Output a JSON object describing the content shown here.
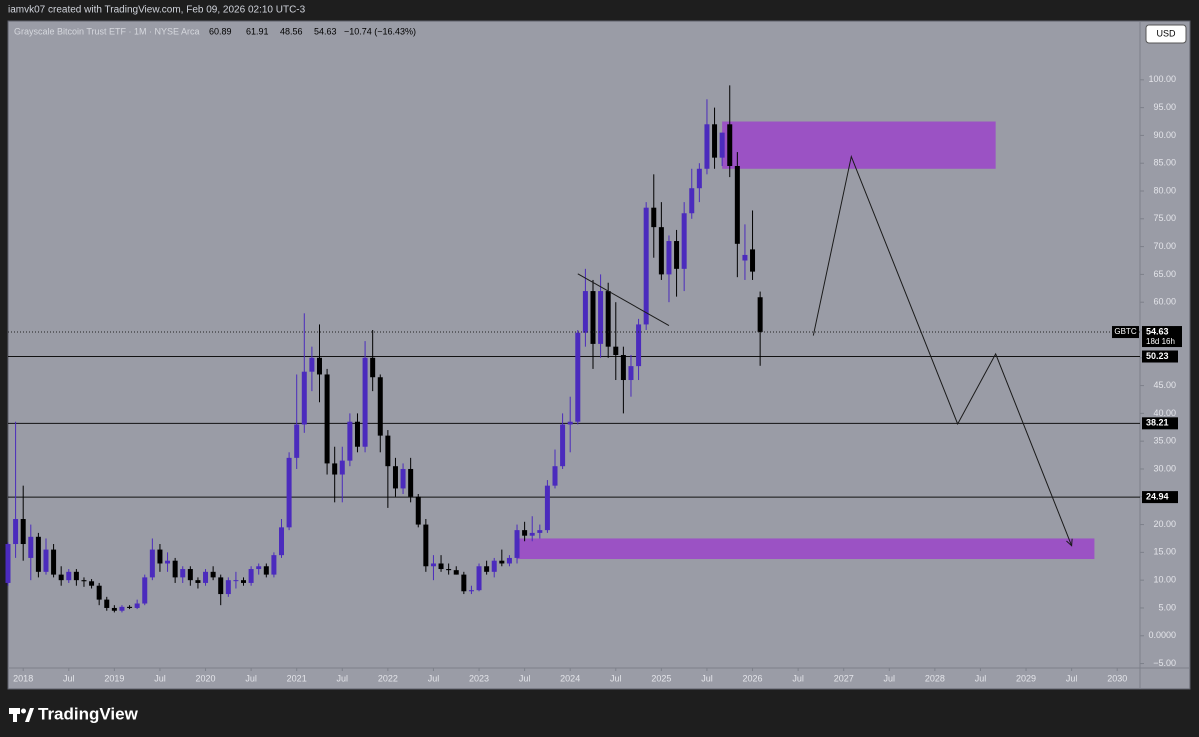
{
  "header": {
    "author_line": "iamvk07 created with TradingView.com, Feb 09, 2026 02:10 UTC-3",
    "brand": "TradingView"
  },
  "chart_data": {
    "type": "candlestick",
    "symbol_title": "Grayscale Bitcoin Trust ETF · 1M · NYSE Arca",
    "change": "−10.74 (−16.43%)",
    "currency": "USD",
    "symbol": "GBTC",
    "countdown": "18d 16h",
    "up_color": "#4b2bbd",
    "down_color": "#000000",
    "x": [
      "2017-11",
      "2017-12",
      "2018-01",
      "2018-02",
      "2018-03",
      "2018-04",
      "2018-05",
      "2018-06",
      "2018-07",
      "2018-08",
      "2018-09",
      "2018-10",
      "2018-11",
      "2018-12",
      "2019-01",
      "2019-02",
      "2019-03",
      "2019-04",
      "2019-05",
      "2019-06",
      "2019-07",
      "2019-08",
      "2019-09",
      "2019-10",
      "2019-11",
      "2019-12",
      "2020-01",
      "2020-02",
      "2020-03",
      "2020-04",
      "2020-05",
      "2020-06",
      "2020-07",
      "2020-08",
      "2020-09",
      "2020-10",
      "2020-11",
      "2020-12",
      "2021-01",
      "2021-02",
      "2021-03",
      "2021-04",
      "2021-05",
      "2021-06",
      "2021-07",
      "2021-08",
      "2021-09",
      "2021-10",
      "2021-11",
      "2021-12",
      "2022-01",
      "2022-02",
      "2022-03",
      "2022-04",
      "2022-05",
      "2022-06",
      "2022-07",
      "2022-08",
      "2022-09",
      "2022-10",
      "2022-11",
      "2022-12",
      "2023-01",
      "2023-02",
      "2023-03",
      "2023-04",
      "2023-05",
      "2023-06",
      "2023-07",
      "2023-08",
      "2023-09",
      "2023-10",
      "2023-11",
      "2023-12",
      "2024-01",
      "2024-02",
      "2024-03",
      "2024-04",
      "2024-05",
      "2024-06",
      "2024-07",
      "2024-08",
      "2024-09",
      "2024-10",
      "2024-11",
      "2024-12",
      "2025-01",
      "2025-02",
      "2025-03",
      "2025-04",
      "2025-05",
      "2025-06",
      "2025-07",
      "2025-08",
      "2025-09",
      "2025-10",
      "2025-11",
      "2025-12",
      "2026-01",
      "2026-02"
    ],
    "open": [
      9.5,
      16.5,
      21.0,
      14.0,
      17.8,
      11.5,
      15.5,
      11.0,
      10.0,
      11.5,
      10.0,
      9.8,
      9.0,
      6.5,
      5.0,
      4.5,
      5.2,
      5.0,
      5.8,
      10.5,
      15.5,
      13.0,
      13.5,
      10.5,
      12.0,
      10.0,
      9.5,
      11.5,
      10.5,
      7.5,
      10.0,
      10.0,
      9.5,
      12.0,
      12.5,
      11.0,
      14.5,
      19.5,
      32.0,
      38.0,
      47.5,
      50.0,
      47.0,
      31.0,
      29.0,
      31.5,
      38.5,
      34.0,
      50.0,
      46.5,
      36.0,
      30.5,
      26.5,
      30.0,
      25.0,
      20.0,
      12.5,
      13.0,
      12.0,
      11.8,
      11.0,
      8.0,
      8.2,
      12.5,
      11.5,
      13.5,
      13.0,
      14.0,
      19.0,
      18.0,
      18.5,
      19.0,
      27.0,
      30.5,
      38.0,
      38.5,
      54.5,
      62.0,
      52.5,
      62.0,
      52.0,
      50.5,
      46.0,
      48.5,
      56.0,
      77.0,
      73.5,
      65.0,
      71.0,
      66.0,
      76.0,
      80.5,
      84.0,
      92.0,
      86.0,
      92.0,
      84.5,
      67.5,
      69.5,
      60.89
    ],
    "high": [
      16.8,
      38.5,
      27.0,
      20.0,
      18.5,
      17.5,
      16.5,
      12.5,
      12.0,
      12.0,
      10.5,
      10.2,
      9.5,
      7.0,
      5.5,
      5.5,
      5.5,
      6.5,
      11.0,
      17.5,
      16.5,
      15.0,
      14.0,
      12.5,
      12.5,
      10.5,
      12.0,
      12.5,
      11.0,
      10.5,
      11.5,
      10.5,
      12.5,
      13.0,
      13.0,
      15.0,
      21.0,
      33.0,
      47.0,
      58.0,
      52.0,
      56.0,
      48.0,
      34.0,
      34.0,
      40.0,
      40.0,
      53.0,
      55.0,
      47.0,
      37.0,
      32.0,
      31.0,
      32.0,
      25.5,
      21.0,
      14.5,
      14.5,
      13.0,
      12.5,
      11.5,
      9.0,
      13.0,
      13.5,
      14.0,
      15.5,
      14.5,
      20.0,
      20.5,
      21.5,
      20.0,
      28.0,
      33.5,
      40.0,
      43.0,
      55.0,
      66.0,
      64.0,
      65.0,
      63.5,
      60.0,
      52.0,
      50.5,
      57.0,
      78.0,
      83.0,
      78.0,
      72.0,
      73.0,
      78.0,
      84.0,
      85.0,
      96.5,
      95.0,
      90.5,
      99.0,
      87.0,
      74.0,
      76.5,
      61.91
    ],
    "low": [
      9.0,
      14.0,
      13.5,
      10.0,
      10.5,
      11.0,
      10.5,
      9.0,
      9.5,
      9.0,
      8.8,
      8.5,
      5.5,
      4.5,
      4.2,
      4.2,
      4.8,
      4.8,
      5.5,
      10.0,
      11.5,
      11.5,
      9.5,
      9.5,
      9.0,
      8.5,
      9.0,
      10.0,
      5.5,
      7.0,
      8.5,
      9.0,
      9.0,
      11.0,
      10.5,
      10.5,
      14.0,
      19.0,
      30.0,
      36.5,
      44.0,
      42.0,
      29.0,
      24.0,
      24.0,
      30.5,
      33.0,
      33.0,
      44.0,
      33.0,
      23.0,
      25.0,
      25.5,
      24.0,
      19.5,
      11.5,
      10.0,
      11.5,
      11.0,
      11.0,
      7.5,
      7.5,
      8.0,
      11.0,
      10.5,
      12.5,
      12.5,
      13.0,
      17.0,
      17.0,
      17.5,
      18.5,
      26.5,
      30.0,
      33.0,
      38.0,
      52.0,
      48.0,
      50.0,
      50.0,
      46.0,
      40.0,
      43.0,
      46.0,
      55.0,
      68.0,
      64.0,
      60.0,
      61.0,
      62.0,
      75.0,
      78.0,
      83.0,
      84.0,
      84.5,
      82.5,
      64.5,
      64.0,
      64.0,
      48.56
    ],
    "close": [
      16.5,
      21.0,
      16.5,
      17.8,
      11.5,
      15.5,
      11.0,
      10.0,
      11.5,
      10.0,
      9.8,
      9.0,
      6.5,
      5.0,
      4.5,
      5.2,
      5.0,
      5.8,
      10.5,
      15.5,
      13.0,
      13.5,
      10.5,
      12.0,
      10.0,
      9.5,
      11.5,
      10.5,
      7.5,
      10.0,
      10.0,
      9.5,
      12.0,
      12.5,
      11.0,
      14.5,
      19.5,
      32.0,
      38.0,
      47.5,
      50.0,
      47.0,
      31.0,
      29.0,
      31.5,
      38.5,
      34.0,
      50.0,
      46.5,
      36.0,
      30.5,
      26.5,
      30.0,
      25.0,
      20.0,
      12.5,
      13.0,
      12.0,
      11.8,
      11.0,
      8.0,
      8.2,
      12.5,
      11.5,
      13.5,
      13.0,
      14.0,
      19.0,
      18.0,
      18.5,
      19.0,
      27.0,
      30.5,
      38.0,
      38.5,
      54.5,
      62.0,
      52.5,
      62.0,
      52.0,
      50.5,
      46.0,
      48.5,
      56.0,
      77.0,
      73.5,
      65.0,
      71.0,
      66.0,
      76.0,
      80.5,
      84.0,
      92.0,
      86.0,
      90.5,
      84.5,
      70.5,
      68.5,
      65.5,
      54.63
    ],
    "xlim": [
      "2017-11",
      "2030-04"
    ],
    "ylim": [
      -5.8,
      110.4
    ],
    "xticks": [
      {
        "value": "2018-01",
        "label": "2018"
      },
      {
        "value": "2018-07",
        "label": "Jul"
      },
      {
        "value": "2019-01",
        "label": "2019"
      },
      {
        "value": "2019-07",
        "label": "Jul"
      },
      {
        "value": "2020-01",
        "label": "2020"
      },
      {
        "value": "2020-07",
        "label": "Jul"
      },
      {
        "value": "2021-01",
        "label": "2021"
      },
      {
        "value": "2021-07",
        "label": "Jul"
      },
      {
        "value": "2022-01",
        "label": "2022"
      },
      {
        "value": "2022-07",
        "label": "Jul"
      },
      {
        "value": "2023-01",
        "label": "2023"
      },
      {
        "value": "2023-07",
        "label": "Jul"
      },
      {
        "value": "2024-01",
        "label": "2024"
      },
      {
        "value": "2024-07",
        "label": "Jul"
      },
      {
        "value": "2025-01",
        "label": "2025"
      },
      {
        "value": "2025-07",
        "label": "Jul"
      },
      {
        "value": "2026-01",
        "label": "2026"
      },
      {
        "value": "2026-07",
        "label": "Jul"
      },
      {
        "value": "2027-01",
        "label": "2027"
      },
      {
        "value": "2027-07",
        "label": "Jul"
      },
      {
        "value": "2028-01",
        "label": "2028"
      },
      {
        "value": "2028-07",
        "label": "Jul"
      },
      {
        "value": "2029-01",
        "label": "2029"
      },
      {
        "value": "2029-07",
        "label": "Jul"
      },
      {
        "value": "2030-01",
        "label": "2030"
      }
    ],
    "yticks": [
      {
        "value": -5,
        "label": "−5.00"
      },
      {
        "value": 0,
        "label": "0.0000"
      },
      {
        "value": 5,
        "label": "5.00"
      },
      {
        "value": 10,
        "label": "10.00"
      },
      {
        "value": 15,
        "label": "15.00"
      },
      {
        "value": 20,
        "label": "20.00"
      },
      {
        "value": 25,
        "label": "25.00"
      },
      {
        "value": 30,
        "label": "30.00"
      },
      {
        "value": 35,
        "label": "35.00"
      },
      {
        "value": 40,
        "label": "40.00"
      },
      {
        "value": 45,
        "label": "45.00"
      },
      {
        "value": 50,
        "label": "50.00"
      },
      {
        "value": 55,
        "label": "55.00"
      },
      {
        "value": 60,
        "label": "60.00"
      },
      {
        "value": 65,
        "label": "65.00"
      },
      {
        "value": 70,
        "label": "70.00"
      },
      {
        "value": 75,
        "label": "75.00"
      },
      {
        "value": 80,
        "label": "80.00"
      },
      {
        "value": 85,
        "label": "85.00"
      },
      {
        "value": 90,
        "label": "90.00"
      },
      {
        "value": 95,
        "label": "95.00"
      },
      {
        "value": 100,
        "label": "100.00"
      }
    ],
    "levels": [
      50.23,
      38.21,
      24.94
    ],
    "zones": [
      {
        "x0": "2025-09",
        "x1": "2028-09",
        "y0": 84,
        "y1": 92.5,
        "color": "#9b52c4"
      },
      {
        "x0": "2023-06",
        "x1": "2029-10",
        "y0": 13.8,
        "y1": 17.5,
        "color": "#9b52c4"
      }
    ],
    "trendline": {
      "x": [
        "2024-02",
        "2025-02"
      ],
      "y": [
        65.1,
        55.8
      ]
    },
    "projection": {
      "x": [
        "2026-09",
        "2027-02",
        "2028-04",
        "2028-09",
        "2029-07"
      ],
      "y": [
        54.0,
        86.2,
        38.1,
        50.7,
        16.2
      ]
    }
  }
}
